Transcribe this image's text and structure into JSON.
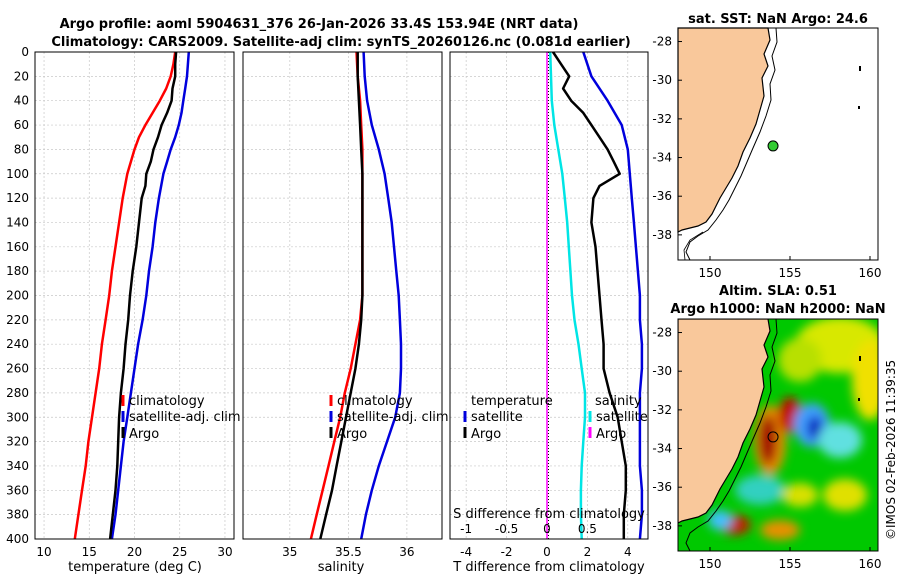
{
  "title_line1": "Argo profile: aoml 5904631_376 26-Jan-2026 33.4S 153.94E (NRT data)",
  "title_line2": "Climatology: CARS2009. Satellite-adj clim: synTS_20260126.nc (0.081d earlier)",
  "side_label": "©IMOS 02-Feb-2026 11:39:35",
  "colors": {
    "clim": "#ff0000",
    "sat": "#0000dd",
    "argo": "#000000",
    "cyan": "#00e5e5",
    "magenta": "#ff00ff",
    "land": "#f9c89b",
    "grid": "#c8c8c8"
  },
  "chart_data": [
    {
      "type": "line",
      "id": "temperature",
      "xlabel": "temperature (deg C)",
      "ylabel": "",
      "xlim": [
        9,
        31
      ],
      "ylim": [
        0,
        400
      ],
      "xticks": [
        10,
        15,
        20,
        25,
        30
      ],
      "yticks": [
        0,
        20,
        40,
        60,
        80,
        100,
        120,
        140,
        160,
        180,
        200,
        220,
        240,
        260,
        280,
        300,
        320,
        340,
        360,
        380,
        400
      ],
      "legend": [
        "climatology",
        "satellite-adj. clim",
        "Argo"
      ],
      "series": [
        {
          "name": "climatology",
          "depth": [
            0,
            10,
            20,
            30,
            40,
            50,
            60,
            70,
            80,
            90,
            100,
            120,
            140,
            160,
            180,
            200,
            220,
            240,
            260,
            280,
            300,
            320,
            340,
            360,
            380,
            400
          ],
          "values": [
            24.5,
            24.3,
            24,
            23.5,
            22.8,
            22,
            21.2,
            20.5,
            20,
            19.6,
            19.2,
            18.7,
            18.3,
            17.9,
            17.5,
            17.2,
            16.8,
            16.4,
            16.1,
            15.7,
            15.3,
            14.9,
            14.6,
            14.2,
            13.8,
            13.4
          ]
        },
        {
          "name": "satellite-adj. clim",
          "depth": [
            0,
            10,
            20,
            30,
            40,
            50,
            60,
            70,
            80,
            90,
            100,
            120,
            140,
            160,
            180,
            200,
            220,
            240,
            260,
            280,
            300,
            320,
            340,
            360,
            380,
            400
          ],
          "values": [
            26,
            25.9,
            25.8,
            25.6,
            25.4,
            25.2,
            24.9,
            24.5,
            24,
            23.6,
            23.2,
            22.7,
            22.3,
            22,
            21.6,
            21.3,
            20.9,
            20.4,
            20,
            19.6,
            19.2,
            18.8,
            18.5,
            18.2,
            17.9,
            17.5
          ]
        },
        {
          "name": "Argo",
          "depth": [
            0,
            10,
            20,
            30,
            40,
            50,
            60,
            70,
            80,
            90,
            100,
            110,
            120,
            140,
            160,
            180,
            200,
            220,
            240,
            260,
            280,
            300,
            320,
            340,
            360,
            380,
            400
          ],
          "values": [
            24.6,
            24.5,
            24.5,
            24.2,
            24.1,
            23.6,
            23,
            22.6,
            22.1,
            21.8,
            21.3,
            21.2,
            20.8,
            20.5,
            20.2,
            19.8,
            19.5,
            19.3,
            19,
            18.8,
            18.5,
            18.3,
            18.2,
            18.1,
            17.9,
            17.6,
            17.3
          ]
        }
      ]
    },
    {
      "type": "line",
      "id": "salinity",
      "xlabel": "salinity",
      "ylabel": "",
      "xlim": [
        34.6,
        36.3
      ],
      "ylim": [
        0,
        400
      ],
      "xticks": [
        35,
        35.5,
        36
      ],
      "legend": [
        "climatology",
        "satellite-adj. clim",
        "Argo"
      ],
      "series": [
        {
          "name": "climatology",
          "depth": [
            0,
            20,
            40,
            60,
            80,
            100,
            120,
            140,
            160,
            180,
            200,
            220,
            240,
            260,
            280,
            300,
            320,
            340,
            360,
            380,
            400
          ],
          "values": [
            35.57,
            35.58,
            35.6,
            35.61,
            35.62,
            35.62,
            35.62,
            35.62,
            35.62,
            35.62,
            35.62,
            35.6,
            35.56,
            35.52,
            35.47,
            35.43,
            35.38,
            35.33,
            35.28,
            35.23,
            35.18
          ]
        },
        {
          "name": "satellite-adj. clim",
          "depth": [
            0,
            20,
            40,
            60,
            80,
            100,
            120,
            140,
            160,
            180,
            200,
            220,
            240,
            260,
            280,
            300,
            320,
            340,
            360,
            380,
            400
          ],
          "values": [
            35.63,
            35.64,
            35.66,
            35.7,
            35.76,
            35.81,
            35.84,
            35.87,
            35.89,
            35.91,
            35.93,
            35.94,
            35.95,
            35.95,
            35.94,
            35.9,
            35.83,
            35.76,
            35.7,
            35.65,
            35.61
          ]
        },
        {
          "name": "Argo",
          "depth": [
            0,
            20,
            40,
            60,
            80,
            100,
            120,
            140,
            160,
            180,
            200,
            220,
            240,
            260,
            280,
            300,
            320,
            340,
            360,
            380,
            400
          ],
          "values": [
            35.58,
            35.58,
            35.59,
            35.6,
            35.61,
            35.62,
            35.62,
            35.62,
            35.62,
            35.62,
            35.62,
            35.61,
            35.59,
            35.56,
            35.52,
            35.48,
            35.44,
            35.4,
            35.36,
            35.31,
            35.26
          ]
        }
      ]
    },
    {
      "type": "line",
      "id": "difference",
      "xlabel": "T difference from climatology",
      "x2label": "S difference from climatology",
      "xlim": [
        -4.8,
        5
      ],
      "ylim": [
        0,
        400
      ],
      "xticks": [
        -4,
        -2,
        0,
        2,
        4
      ],
      "x2ticks": [
        -1,
        -0.5,
        0,
        0.5
      ],
      "legend_temperature": {
        "title": "temperature",
        "items": [
          "satellite",
          "Argo"
        ]
      },
      "legend_salinity": {
        "title": "salinity",
        "items": [
          "satellite",
          "Argo"
        ]
      },
      "series": [
        {
          "name": "temperature satellite",
          "depth": [
            0,
            20,
            40,
            60,
            80,
            100,
            120,
            140,
            160,
            180,
            200,
            220,
            240,
            260,
            280,
            300,
            320,
            340,
            360,
            380,
            400
          ],
          "values": [
            1.8,
            2.2,
            3,
            3.7,
            4,
            4.1,
            4.2,
            4.3,
            4.4,
            4.5,
            4.6,
            4.6,
            4.7,
            4.7,
            4.6,
            4.6,
            4.6,
            4.6,
            4.7,
            4.7,
            4.6
          ]
        },
        {
          "name": "temperature Argo",
          "depth": [
            0,
            10,
            20,
            30,
            40,
            50,
            60,
            70,
            80,
            90,
            100,
            110,
            120,
            140,
            160,
            180,
            200,
            220,
            240,
            260,
            280,
            300,
            320,
            340,
            360,
            380,
            400
          ],
          "values": [
            0.3,
            0.7,
            1.1,
            0.8,
            1.2,
            1.8,
            2.2,
            2.6,
            3,
            3.3,
            3.6,
            2.6,
            2.3,
            2.2,
            2.4,
            2.5,
            2.6,
            2.7,
            2.8,
            2.8,
            3.1,
            3.5,
            3.7,
            3.9,
            3.9,
            3.8,
            3.8
          ]
        },
        {
          "name": "salinity satellite",
          "depth": [
            0,
            20,
            40,
            60,
            80,
            100,
            120,
            140,
            160,
            180,
            200,
            220,
            240,
            260,
            280,
            300,
            320,
            340,
            360,
            380,
            400
          ],
          "values": [
            0.04,
            0.05,
            0.06,
            0.09,
            0.14,
            0.19,
            0.22,
            0.25,
            0.27,
            0.29,
            0.31,
            0.34,
            0.39,
            0.43,
            0.47,
            0.47,
            0.45,
            0.43,
            0.42,
            0.42,
            0.43
          ]
        },
        {
          "name": "salinity Argo",
          "depth": [
            0,
            100,
            200,
            300,
            400
          ],
          "values": [
            0,
            0,
            0,
            0,
            0
          ]
        }
      ]
    },
    {
      "type": "map",
      "id": "sst-map",
      "title": "sat. SST: NaN Argo: 24.6",
      "xlim": [
        148,
        160.5
      ],
      "ylim": [
        -39.3,
        -27.3
      ],
      "xticks": [
        150,
        155,
        160
      ],
      "yticks": [
        -28,
        -30,
        -32,
        -34,
        -36,
        -38
      ],
      "marker": {
        "lon": 153.94,
        "lat": -33.4
      }
    },
    {
      "type": "map",
      "id": "sla-map",
      "title": "Altim. SLA: 0.51",
      "subtitle": "Argo h1000: NaN h2000: NaN",
      "xlim": [
        148,
        160.5
      ],
      "ylim": [
        -39.3,
        -27.3
      ],
      "xticks": [
        150,
        155,
        160
      ],
      "yticks": [
        -28,
        -30,
        -32,
        -34,
        -36,
        -38
      ],
      "marker": {
        "lon": 153.94,
        "lat": -33.4
      }
    }
  ]
}
